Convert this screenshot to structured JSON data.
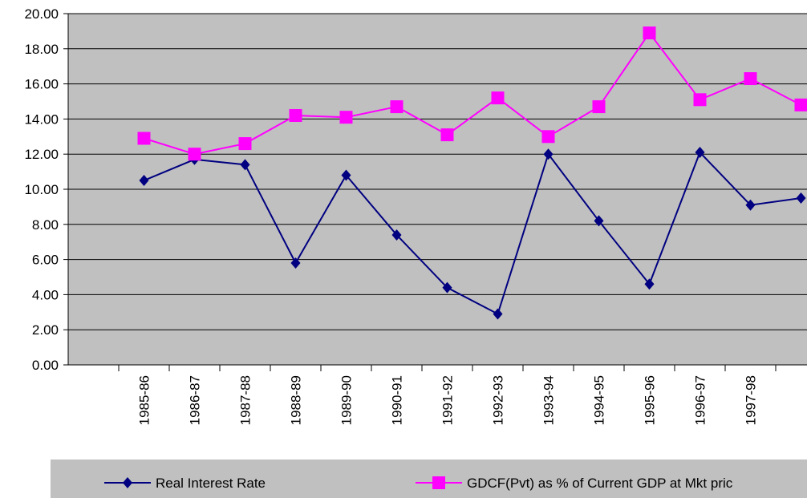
{
  "chart_data": {
    "type": "line",
    "categories": [
      null,
      "1985-86",
      "1986-87",
      "1987-88",
      "1988-89",
      "1989-90",
      "1990-91",
      "1991-92",
      "1992-93",
      "1993-94",
      "1994-95",
      "1995-96",
      "1996-97",
      "1997-98",
      null
    ],
    "series": [
      {
        "name": "Real Interest Rate",
        "color": "#000080",
        "marker": "diamond",
        "values": [
          null,
          10.5,
          11.7,
          11.4,
          5.8,
          10.8,
          7.4,
          4.4,
          2.9,
          12.0,
          8.2,
          4.6,
          12.1,
          9.1,
          9.5
        ]
      },
      {
        "name": "GDCF(Pvt) as % of Current GDP at Mkt pric",
        "color": "#ff00ff",
        "marker": "square",
        "values": [
          null,
          12.9,
          12.0,
          12.6,
          14.2,
          14.1,
          14.7,
          13.1,
          15.2,
          13.0,
          14.7,
          18.9,
          15.1,
          16.3,
          14.8
        ]
      }
    ],
    "ylim": [
      0,
      20
    ],
    "yticks": [
      {
        "value": 0,
        "label": "0.00"
      },
      {
        "value": 2,
        "label": "2.00"
      },
      {
        "value": 4,
        "label": "4.00"
      },
      {
        "value": 6,
        "label": "6.00"
      },
      {
        "value": 8,
        "label": "8.00"
      },
      {
        "value": 10,
        "label": "10.00"
      },
      {
        "value": 12,
        "label": "12.00"
      },
      {
        "value": 14,
        "label": "14.00"
      },
      {
        "value": 16,
        "label": "16.00"
      },
      {
        "value": 18,
        "label": "18.00"
      },
      {
        "value": 20,
        "label": "20.00"
      }
    ],
    "grid": true,
    "legend": "bottom"
  }
}
